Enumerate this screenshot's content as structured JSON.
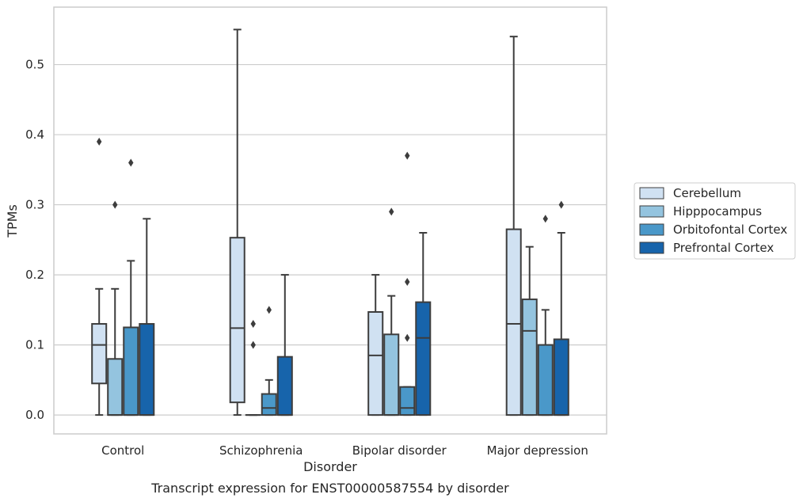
{
  "chart_data": {
    "type": "box",
    "caption": "Transcript expression for ENST00000587554 by disorder",
    "xlabel": "Disorder",
    "ylabel": "TPMs",
    "ylim": [
      -0.027,
      0.582
    ],
    "yticks": [
      0.0,
      0.1,
      0.2,
      0.3,
      0.4,
      0.5
    ],
    "ytick_labels": [
      "0.0",
      "0.1",
      "0.2",
      "0.3",
      "0.4",
      "0.5"
    ],
    "grid": "horizontal",
    "legend_position": "right",
    "categories": [
      "Control",
      "Schizophrenia",
      "Bipolar disorder",
      "Major depression"
    ],
    "series": [
      {
        "name": "Cerebellum",
        "color": "#d0e1f2",
        "boxes": [
          {
            "whislo": 0.0,
            "q1": 0.045,
            "med": 0.1,
            "q3": 0.13,
            "whishi": 0.18,
            "fliers": [
              0.39
            ]
          },
          {
            "whislo": 0.0,
            "q1": 0.018,
            "med": 0.124,
            "q3": 0.253,
            "whishi": 0.55,
            "fliers": []
          },
          {
            "whislo": 0.0,
            "q1": 0.0,
            "med": 0.085,
            "q3": 0.147,
            "whishi": 0.2,
            "fliers": []
          },
          {
            "whislo": 0.0,
            "q1": 0.0,
            "med": 0.13,
            "q3": 0.265,
            "whishi": 0.54,
            "fliers": []
          }
        ]
      },
      {
        "name": "Hipppocampus",
        "color": "#94c4df",
        "boxes": [
          {
            "whislo": 0.0,
            "q1": 0.0,
            "med": 0.0,
            "q3": 0.08,
            "whishi": 0.18,
            "fliers": [
              0.3
            ]
          },
          {
            "whislo": 0.0,
            "q1": 0.0,
            "med": 0.0,
            "q3": 0.0,
            "whishi": 0.0,
            "fliers": [
              0.1,
              0.13
            ]
          },
          {
            "whislo": 0.0,
            "q1": 0.0,
            "med": 0.0,
            "q3": 0.115,
            "whishi": 0.17,
            "fliers": [
              0.29
            ]
          },
          {
            "whislo": 0.0,
            "q1": 0.0,
            "med": 0.12,
            "q3": 0.165,
            "whishi": 0.24,
            "fliers": []
          }
        ]
      },
      {
        "name": "Orbitofontal Cortex",
        "color": "#4a98c9",
        "boxes": [
          {
            "whislo": 0.0,
            "q1": 0.0,
            "med": 0.0,
            "q3": 0.125,
            "whishi": 0.22,
            "fliers": [
              0.36
            ]
          },
          {
            "whislo": 0.0,
            "q1": 0.0,
            "med": 0.01,
            "q3": 0.03,
            "whishi": 0.05,
            "fliers": [
              0.15
            ]
          },
          {
            "whislo": 0.0,
            "q1": 0.0,
            "med": 0.01,
            "q3": 0.04,
            "whishi": 0.04,
            "fliers": [
              0.11,
              0.19,
              0.37
            ]
          },
          {
            "whislo": 0.0,
            "q1": 0.0,
            "med": 0.0,
            "q3": 0.1,
            "whishi": 0.15,
            "fliers": [
              0.28
            ]
          }
        ]
      },
      {
        "name": "Prefrontal Cortex",
        "color": "#1764ab",
        "boxes": [
          {
            "whislo": 0.0,
            "q1": 0.0,
            "med": 0.0,
            "q3": 0.13,
            "whishi": 0.28,
            "fliers": []
          },
          {
            "whislo": 0.0,
            "q1": 0.0,
            "med": 0.0,
            "q3": 0.083,
            "whishi": 0.2,
            "fliers": []
          },
          {
            "whislo": 0.0,
            "q1": 0.0,
            "med": 0.11,
            "q3": 0.161,
            "whishi": 0.26,
            "fliers": []
          },
          {
            "whislo": 0.0,
            "q1": 0.0,
            "med": 0.0,
            "q3": 0.108,
            "whishi": 0.26,
            "fliers": [
              0.3
            ]
          }
        ]
      }
    ]
  }
}
